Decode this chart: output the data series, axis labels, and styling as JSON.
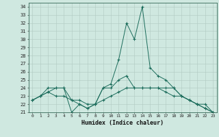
{
  "xlabel": "Humidex (Indice chaleur)",
  "background_color": "#cfe8e0",
  "grid_color": "#b0c8c0",
  "line_color": "#1a6b5a",
  "x": [
    0,
    1,
    2,
    3,
    4,
    5,
    6,
    7,
    8,
    9,
    10,
    11,
    12,
    13,
    14,
    15,
    16,
    17,
    18,
    19,
    20,
    21,
    22,
    23
  ],
  "series1": [
    22.5,
    23.0,
    23.5,
    24.0,
    24.0,
    21.0,
    22.0,
    21.5,
    22.0,
    24.0,
    24.5,
    27.5,
    32.0,
    30.0,
    34.0,
    26.5,
    25.5,
    25.0,
    24.0,
    23.0,
    22.5,
    22.0,
    21.5,
    21.0
  ],
  "series2": [
    22.5,
    23.0,
    24.0,
    24.0,
    24.0,
    22.5,
    22.5,
    22.0,
    22.0,
    24.0,
    24.0,
    25.0,
    25.5,
    24.0,
    24.0,
    24.0,
    24.0,
    24.0,
    24.0,
    23.0,
    22.5,
    22.0,
    22.0,
    21.0
  ],
  "series3": [
    22.5,
    23.0,
    23.5,
    23.0,
    23.0,
    22.5,
    22.0,
    21.5,
    22.0,
    22.5,
    23.0,
    23.5,
    24.0,
    24.0,
    24.0,
    24.0,
    24.0,
    23.5,
    23.0,
    23.0,
    22.5,
    22.0,
    21.5,
    21.0
  ],
  "ylim_min": 21,
  "ylim_max": 34.5,
  "yticks": [
    21,
    22,
    23,
    24,
    25,
    26,
    27,
    28,
    29,
    30,
    31,
    32,
    33,
    34
  ],
  "xticks": [
    0,
    1,
    2,
    3,
    4,
    5,
    6,
    7,
    8,
    9,
    10,
    11,
    12,
    13,
    14,
    15,
    16,
    17,
    18,
    19,
    20,
    21,
    22,
    23
  ],
  "tick_fontsize": 5,
  "xlabel_fontsize": 6
}
